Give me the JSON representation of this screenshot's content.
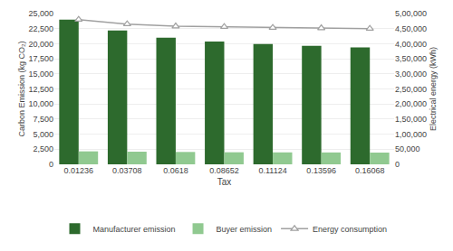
{
  "chart_data": {
    "type": "bar",
    "xlabel": "Tax",
    "ylabel": "Carbon Emission (kg CO₂)",
    "y2label": "Electrical energy (kWh)",
    "categories": [
      "0.01236",
      "0.03708",
      "0.0618",
      "0.08652",
      "0.11124",
      "0.13596",
      "0.16068"
    ],
    "series": [
      {
        "name": "Manufacturer emission",
        "type": "bar",
        "color": "#2d6a2d",
        "values": [
          24000,
          22200,
          21000,
          20350,
          19950,
          19650,
          19400
        ]
      },
      {
        "name": "Buyer emission",
        "type": "bar",
        "color": "#90c990",
        "values": [
          2150,
          2100,
          2050,
          2000,
          1980,
          1970,
          1950
        ]
      },
      {
        "name": "Energy consumption",
        "type": "line",
        "axis": "y2",
        "color": "#a0a0a0",
        "marker": "triangle-up",
        "values": [
          480000,
          465000,
          458000,
          456000,
          453000,
          452000,
          450000
        ]
      }
    ],
    "ylim": [
      0,
      25000
    ],
    "yticks": [
      0,
      {
        "value": 2500,
        "label": "2,500"
      },
      {
        "value": 5000,
        "label": "5,000"
      },
      {
        "value": 7500,
        "label": "7,500"
      },
      {
        "value": 10000,
        "label": "10,000"
      },
      {
        "value": 12500,
        "label": "12,500"
      },
      {
        "value": 15000,
        "label": "15,000"
      },
      {
        "value": 17500,
        "label": "17,500"
      },
      {
        "value": 20000,
        "label": "20,000"
      },
      {
        "value": 22500,
        "label": "22,500"
      },
      {
        "value": 25000,
        "label": "25,000"
      }
    ],
    "y2lim": [
      0,
      500000
    ],
    "y2ticks": [
      0,
      {
        "value": 50000,
        "label": "50,000"
      },
      {
        "value": 100000,
        "label": "1,00,000"
      },
      {
        "value": 150000,
        "label": "1,50,000"
      },
      {
        "value": 200000,
        "label": "2,00,000"
      },
      {
        "value": 250000,
        "label": "2,50,000"
      },
      {
        "value": 300000,
        "label": "3,00,000"
      },
      {
        "value": 350000,
        "label": "3,50,000"
      },
      {
        "value": 400000,
        "label": "4,00,000"
      },
      {
        "value": 450000,
        "label": "4,50,000"
      },
      {
        "value": 500000,
        "label": "5,00,000"
      }
    ],
    "grid": true,
    "legend": "bottom"
  }
}
